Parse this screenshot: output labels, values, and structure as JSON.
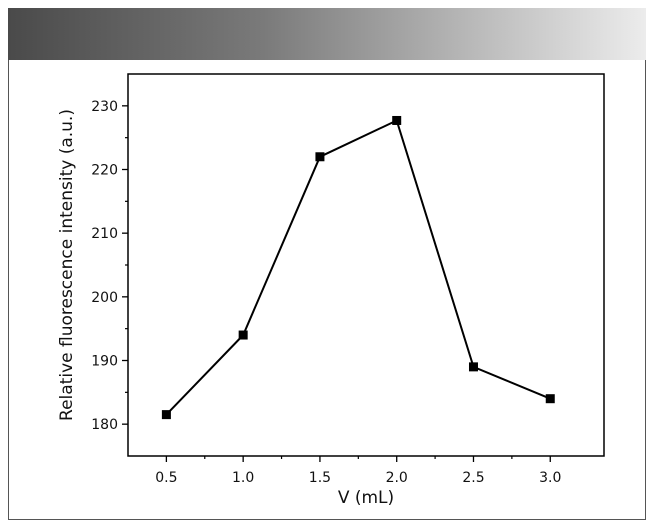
{
  "chart_data": {
    "type": "line",
    "title": "",
    "xlabel": "V (mL)",
    "ylabel": "Relative fluorescence intensity (a.u.)",
    "x": [
      0.5,
      1.0,
      1.5,
      2.0,
      2.5,
      3.0
    ],
    "series": [
      {
        "values": [
          181.5,
          194.0,
          222.0,
          227.7,
          189.0,
          184.0
        ]
      }
    ],
    "xticks": [
      "0.5",
      "1.0",
      "1.5",
      "2.0",
      "2.5",
      "3.0"
    ],
    "yticks": [
      "180",
      "190",
      "200",
      "210",
      "220",
      "230"
    ],
    "xlim": [
      0.25,
      3.35
    ],
    "ylim": [
      175,
      235
    ],
    "grid": false,
    "legend": "none",
    "marker": "square",
    "line_color": "#000000"
  }
}
